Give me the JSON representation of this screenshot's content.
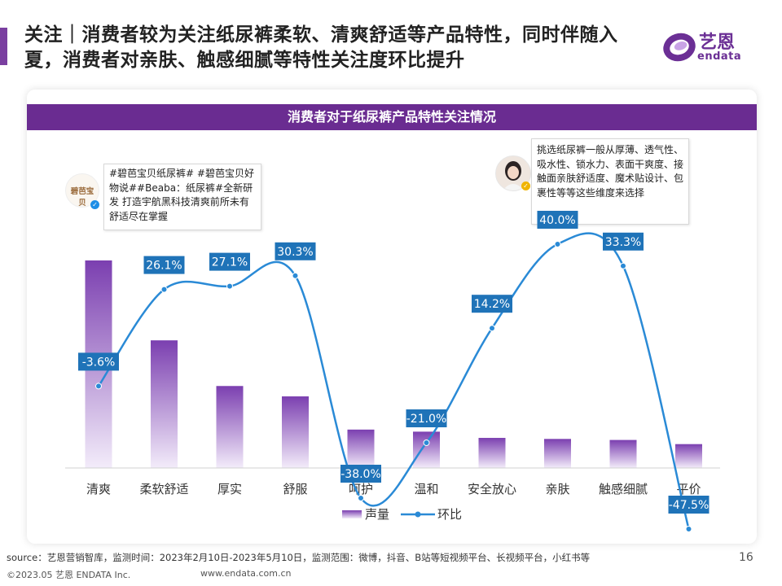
{
  "header": {
    "headline": "关注｜消费者较为关注纸尿裤柔软、清爽舒适等产品特性，同时伴随入夏，消费者对亲肤、触感细腻等特性关注度环比提升"
  },
  "logo": {
    "cn": "艺恩",
    "en": "endata"
  },
  "chart_title": "消费者对于纸尿裤产品特性关注情况",
  "callouts": [
    {
      "brand": "碧芭宝贝",
      "text": "#碧芭宝贝纸尿裤# #碧芭宝贝好物说##Beaba：纸尿裤#全新研发 打造宇航黑科技清爽前所未有 舒适尽在掌握"
    },
    {
      "text": "挑选纸尿裤一般从厚薄、透气性、吸水性、锁水力、表面干爽度、接触面亲肤舒适度、魔术贴设计、包裹性等等这些维度来选择"
    }
  ],
  "chart_data": {
    "type": "bar",
    "categories": [
      "清爽",
      "柔软舒适",
      "厚实",
      "舒服",
      "呵护",
      "温和",
      "安全放心",
      "亲肤",
      "触感细腻",
      "平价"
    ],
    "series": [
      {
        "name": "声量",
        "type": "bar",
        "values": [
          100,
          61.5,
          39.5,
          34.5,
          18.5,
          17.5,
          14.5,
          14,
          13.5,
          11.5
        ]
      },
      {
        "name": "环比",
        "type": "line",
        "unit": "%",
        "values": [
          -3.6,
          26.1,
          27.1,
          30.3,
          -38.0,
          -21.0,
          14.2,
          40.0,
          33.3,
          -47.5
        ],
        "labels": [
          "-3.6%",
          "26.1%",
          "27.1%",
          "30.3%",
          "-38.0%",
          "-21.0%",
          "14.2%",
          "40.0%",
          "33.3%",
          "-47.5%"
        ]
      }
    ],
    "legend_position": "bottom",
    "colors": {
      "bar_top": "#7b3fb0",
      "bar_bottom": "#f3ecfa",
      "line": "#2a8ad6",
      "label_bg": "#1f73b8",
      "label_text": "#ffffff"
    }
  },
  "footer": {
    "source": "source：艺恩营销智库，监测时间：2023年2月10日-2023年5月10日，监测范围：微博，抖音、B站等短视频平台、长视频平台，小红书等",
    "page": "16",
    "copyright": "©2023.05 艺恩 ENDATA Inc.",
    "url": "www.endata.com.cn"
  }
}
